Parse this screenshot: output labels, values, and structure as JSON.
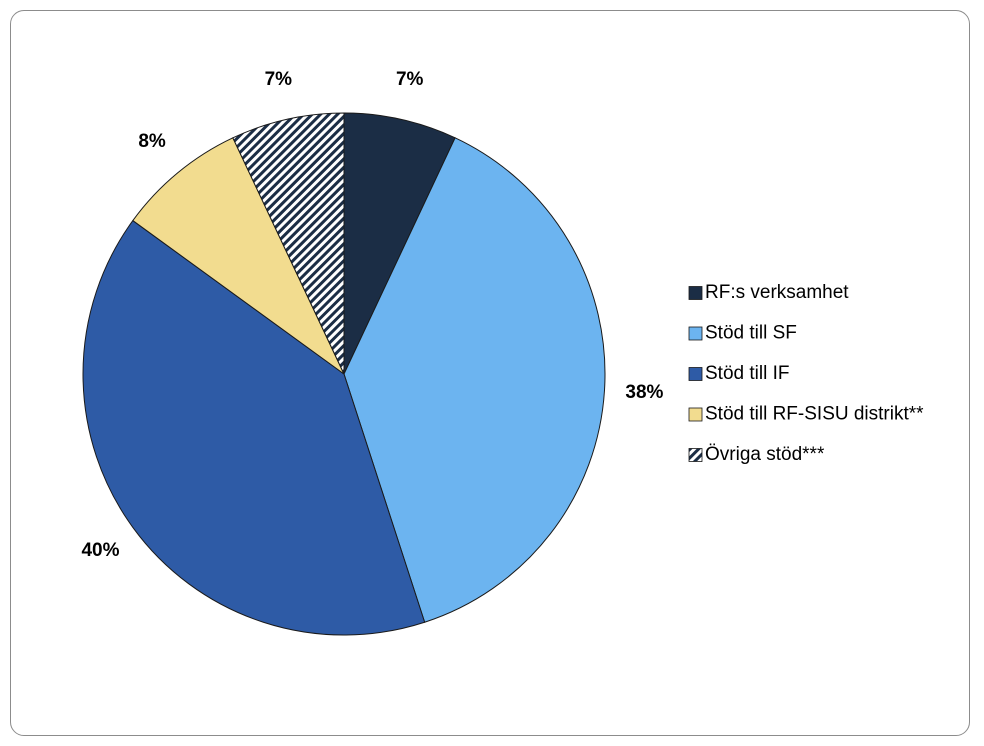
{
  "chart_data": {
    "type": "pie",
    "title": "",
    "series": [
      {
        "values": [
          7,
          38,
          40,
          8,
          7
        ],
        "labels": [
          "7%",
          "38%",
          "40%",
          "8%",
          "7%"
        ]
      }
    ],
    "categories": [
      "RF:s verksamhet",
      "Stöd till SF",
      "Stöd till IF",
      "Stöd till RF-SISU distrikt**",
      "Övriga stöd***"
    ],
    "colors": [
      "#1b2d45",
      "#6cb4f0",
      "#2e5ba6",
      "#f2dc8f",
      "pattern-navy-white-diagonal"
    ],
    "start_angle_deg": 0,
    "direction": "clockwise",
    "legend_position": "right"
  }
}
